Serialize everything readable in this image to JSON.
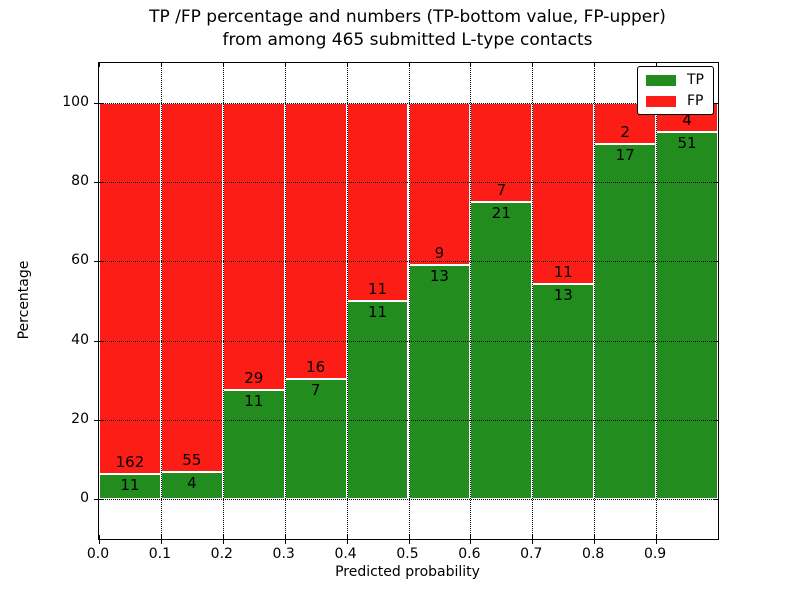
{
  "title": {
    "line1": "TP /FP percentage and numbers (TP-bottom value, FP-upper)",
    "line2": "from among 465 submitted L-type contacts"
  },
  "chart_data": {
    "type": "bar",
    "subtype": "stacked-percentage-histogram",
    "title": "TP /FP percentage and numbers (TP-bottom value, FP-upper)\nfrom among 465 submitted L-type contacts",
    "xlabel": "Predicted probability",
    "ylabel": "Percentage",
    "total_contacts": 465,
    "bin_edges": [
      0.0,
      0.1,
      0.2,
      0.3,
      0.4,
      0.5,
      0.6,
      0.7,
      0.8,
      0.9,
      1.0
    ],
    "x_tick_labels": [
      "0.0",
      "0.1",
      "0.2",
      "0.3",
      "0.4",
      "0.5",
      "0.6",
      "0.7",
      "0.8",
      "0.9"
    ],
    "y_ticks": [
      0,
      20,
      40,
      60,
      80,
      100
    ],
    "xlim": [
      0,
      1
    ],
    "ylim": [
      -10,
      110
    ],
    "grid": true,
    "legend_position": "upper right",
    "series": [
      {
        "name": "TP",
        "color": "#228c1e",
        "counts": [
          11,
          4,
          11,
          7,
          11,
          13,
          21,
          13,
          17,
          51
        ]
      },
      {
        "name": "FP",
        "color": "#fc1d17",
        "counts": [
          162,
          55,
          29,
          16,
          11,
          9,
          7,
          11,
          2,
          4
        ]
      }
    ],
    "tp_percent_of_bin": [
      6.4,
      6.8,
      27.5,
      30.4,
      50.0,
      59.1,
      75.0,
      54.2,
      89.5,
      92.7
    ]
  }
}
